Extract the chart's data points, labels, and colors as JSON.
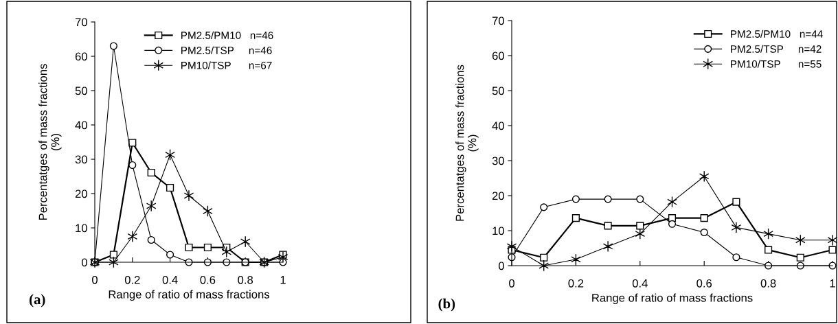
{
  "chart_data": [
    {
      "type": "line",
      "xlabel": "Range of ratio of mass fractions",
      "ylabel": "Percentatges of mass fractions\n(%)",
      "annotations": [
        "(a)"
      ],
      "x": [
        0,
        0.1,
        0.2,
        0.3,
        0.4,
        0.5,
        0.6,
        0.7,
        0.8,
        0.9,
        1
      ],
      "xlim": [
        0,
        1
      ],
      "xticks": [
        0,
        0.2,
        0.4,
        0.6,
        0.8,
        1
      ],
      "ylim": [
        0,
        70
      ],
      "yticks": [
        0,
        10,
        20,
        30,
        40,
        50,
        60,
        70
      ],
      "grid": false,
      "legend": "top right",
      "series": [
        {
          "name": "PM2.5/PM10   n=46",
          "color": "#000000",
          "marker": "square",
          "values": [
            0,
            2.2,
            34.8,
            26.1,
            21.7,
            4.3,
            4.3,
            4.3,
            0,
            0,
            2.2
          ]
        },
        {
          "name": "PM2.5/TSP     n=46",
          "color": "#000000",
          "marker": "circle",
          "values": [
            0,
            63.0,
            28.3,
            6.5,
            2.2,
            0,
            0,
            0,
            0,
            0,
            0
          ]
        },
        {
          "name": "PM10/TSP      n=67",
          "color": "#000000",
          "marker": "cross",
          "values": [
            0,
            0,
            7.5,
            16.4,
            31.3,
            19.4,
            14.9,
            3.0,
            6.0,
            0,
            1.5
          ]
        }
      ]
    },
    {
      "type": "line",
      "xlabel": "Range of ratio of mass fractions",
      "ylabel": "Percentatges of mass fractions\n(%)",
      "annotations": [
        "(b)"
      ],
      "x": [
        0,
        0.1,
        0.2,
        0.3,
        0.4,
        0.5,
        0.6,
        0.7,
        0.8,
        0.9,
        1
      ],
      "xlim": [
        0,
        1
      ],
      "xticks": [
        0,
        0.2,
        0.4,
        0.6,
        0.8,
        1
      ],
      "ylim": [
        0,
        70
      ],
      "yticks": [
        0,
        10,
        20,
        30,
        40,
        50,
        60,
        70
      ],
      "grid": false,
      "legend": "top right",
      "series": [
        {
          "name": "PM2.5/PM10   n=44",
          "color": "#000000",
          "marker": "square",
          "values": [
            4.5,
            2.3,
            13.6,
            11.4,
            11.4,
            13.6,
            13.6,
            18.2,
            4.5,
            2.3,
            4.5
          ]
        },
        {
          "name": "PM2.5/TSP     n=42",
          "color": "#000000",
          "marker": "circle",
          "values": [
            2.4,
            16.7,
            19.0,
            19.0,
            19.0,
            11.9,
            9.5,
            2.4,
            0,
            0,
            0
          ]
        },
        {
          "name": "PM10/TSP      n=55",
          "color": "#000000",
          "marker": "cross",
          "values": [
            5.5,
            0,
            1.8,
            5.5,
            9.1,
            18.2,
            25.5,
            10.9,
            9.1,
            7.3,
            7.3
          ]
        }
      ]
    }
  ]
}
